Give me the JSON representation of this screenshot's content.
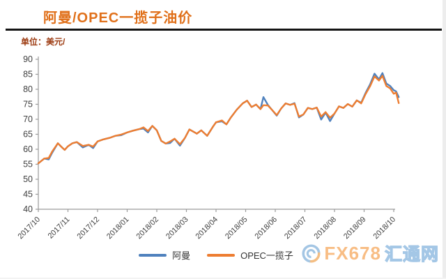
{
  "header": {
    "title": "阿曼/OPEC一揽子油价",
    "unit_label": "单位：美元/"
  },
  "legend": {
    "items": [
      {
        "label": "阿曼",
        "color": "#4f81bd"
      },
      {
        "label": "OPEC一揽子",
        "color": "#ed7d31"
      }
    ]
  },
  "watermark": {
    "brand": "FX678",
    "site": "汇通网"
  },
  "colors": {
    "oman_line": "#4f81bd",
    "opec_line": "#ed7d31",
    "title_text": "#e0701a",
    "unit_text": "#9c3a10",
    "axis": "#9a9a9a",
    "tick_text": "#3f3f3f",
    "header_rule": "#141414"
  },
  "chart_data": {
    "type": "line",
    "title": "阿曼/OPEC一揽子油价",
    "ylabel": "美元",
    "xlabel": "",
    "ylim": [
      40,
      90
    ],
    "ytick_step": 5,
    "grid": false,
    "legend_position": "bottom",
    "x_tick_labels": [
      "2017/10",
      "2017/11",
      "2017/12",
      "2018/01",
      "2018/02",
      "2018/03",
      "2018/04",
      "2018/05",
      "2018/06",
      "2018/07",
      "2018/08",
      "2018/09",
      "2018/10"
    ],
    "x_months": [
      0,
      0.2,
      0.35,
      0.47,
      0.66,
      0.8,
      0.89,
      1,
      1.15,
      1.3,
      1.5,
      1.7,
      1.85,
      2,
      2.2,
      2.4,
      2.6,
      2.8,
      3,
      3.2,
      3.4,
      3.55,
      3.7,
      3.85,
      4,
      4.15,
      4.3,
      4.45,
      4.6,
      4.78,
      4.95,
      5.1,
      5.35,
      5.5,
      5.7,
      5.9,
      6,
      6.2,
      6.35,
      6.5,
      6.7,
      6.9,
      7.05,
      7.2,
      7.35,
      7.5,
      7.6,
      7.75,
      7.9,
      8.05,
      8.2,
      8.35,
      8.5,
      8.65,
      8.8,
      8.95,
      9.1,
      9.25,
      9.4,
      9.55,
      9.7,
      9.85,
      10,
      10.15,
      10.3,
      10.45,
      10.6,
      10.75,
      10.9,
      11.05,
      11.2,
      11.35,
      11.5,
      11.62,
      11.75,
      11.88,
      12,
      12.08,
      12.17
    ],
    "series": [
      {
        "name": "阿曼",
        "color": "#4f81bd",
        "values": [
          55.3,
          56.9,
          56.6,
          58.9,
          62,
          60.6,
          59.8,
          61,
          62,
          62.4,
          60.6,
          61.5,
          60.4,
          62.6,
          63.3,
          63.8,
          64.5,
          64.7,
          65.6,
          66.2,
          66.7,
          66.9,
          65.6,
          67.8,
          66.3,
          62.8,
          61.9,
          62.1,
          63.5,
          61.2,
          63.8,
          66.6,
          65.2,
          66.3,
          64.5,
          67.6,
          69,
          69.3,
          68.3,
          70.6,
          73.2,
          75.3,
          76.2,
          74.1,
          74.9,
          73.4,
          77.4,
          74.8,
          73,
          71.2,
          73.6,
          75.3,
          74.8,
          75.4,
          70.6,
          71.6,
          73.8,
          73.4,
          73.9,
          69.9,
          72.2,
          69.4,
          71.9,
          74.3,
          73.8,
          75.1,
          74.2,
          76.3,
          75.5,
          78.8,
          81.6,
          85.2,
          83.3,
          85.4,
          81.9,
          81.1,
          79.7,
          79.3,
          77.4
        ]
      },
      {
        "name": "OPEC一揽子",
        "color": "#ed7d31",
        "values": [
          55.3,
          56.9,
          57.1,
          59.3,
          62,
          60.6,
          59.8,
          61,
          62,
          62.4,
          61.1,
          61.5,
          60.9,
          62.6,
          63.3,
          63.8,
          64.5,
          64.9,
          65.6,
          66.2,
          66.7,
          67.3,
          66.1,
          67.8,
          66.3,
          62.8,
          61.9,
          62.6,
          63.5,
          61.7,
          63.8,
          66.6,
          65.2,
          66.3,
          64.5,
          67.6,
          69,
          69.6,
          68.3,
          70.6,
          73.2,
          75.3,
          76.2,
          74.1,
          74.9,
          73.4,
          74.7,
          74.6,
          73,
          71.4,
          73.6,
          75.3,
          74.8,
          75.2,
          70.9,
          71.6,
          73.8,
          73.4,
          73.9,
          70.9,
          72.4,
          70.5,
          71.9,
          74.3,
          73.8,
          75.1,
          74.2,
          76.3,
          75.3,
          78.4,
          81,
          84.3,
          82.9,
          84.5,
          81.1,
          80.3,
          78.5,
          78.9,
          75.4
        ]
      }
    ]
  }
}
